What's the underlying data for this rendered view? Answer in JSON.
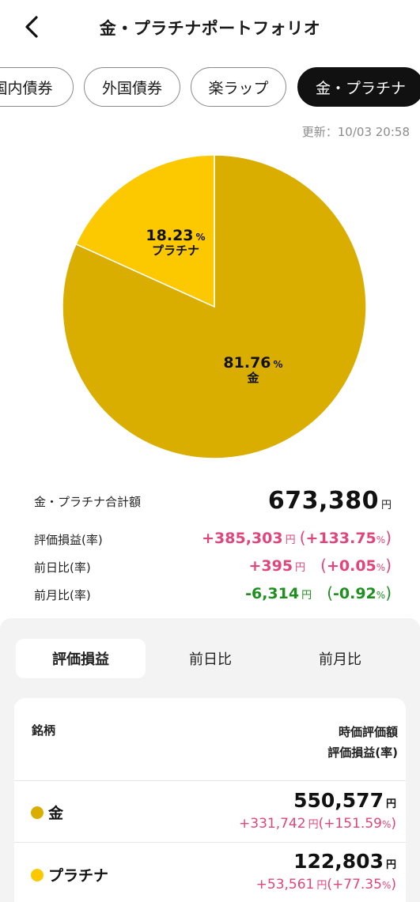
{
  "header": {
    "title": "金・プラチナポートフォリオ",
    "back_icon": "chevron-left-icon"
  },
  "tabs": [
    {
      "label": "国内債券",
      "active": false
    },
    {
      "label": "外国債券",
      "active": false
    },
    {
      "label": "楽ラップ",
      "active": false
    },
    {
      "label": "金・プラチナ",
      "active": true
    }
  ],
  "updated": "更新：10/03 20:58",
  "chart_data": {
    "type": "pie",
    "slices": [
      {
        "name": "金",
        "value": 81.76,
        "color": "#d9ae00"
      },
      {
        "name": "プラチナ",
        "value": 18.23,
        "color": "#fcc800"
      }
    ],
    "unit": "%"
  },
  "summary": {
    "total_label": "金・プラチナ合計額",
    "total_value": "673,380",
    "yen": "円",
    "rows": [
      {
        "label": "評価損益(率)",
        "amount": "+385,303",
        "rate": "+133.75",
        "color": "pink"
      },
      {
        "label": "前日比(率)",
        "amount": "+395",
        "rate": "+0.05",
        "color": "pink"
      },
      {
        "label": "前月比(率)",
        "amount": "-6,314",
        "rate": "-0.92",
        "color": "green"
      }
    ]
  },
  "segments": [
    {
      "label": "評価損益",
      "active": true
    },
    {
      "label": "前日比",
      "active": false
    },
    {
      "label": "前月比",
      "active": false
    }
  ],
  "table": {
    "col_name": "銘柄",
    "col_value1": "時価評価額",
    "col_value2": "評価損益(率)",
    "rows": [
      {
        "name": "金",
        "dot_color": "#d9ae00",
        "value": "550,577",
        "gain": "+331,742",
        "rate": "+151.59"
      },
      {
        "name": "プラチナ",
        "dot_color": "#fcc800",
        "value": "122,803",
        "gain": "+53,561",
        "rate": "+77.35"
      }
    ]
  },
  "pct_sign": "%",
  "colors": {
    "pink": "#e0457b",
    "green": "#1f8f1f"
  }
}
